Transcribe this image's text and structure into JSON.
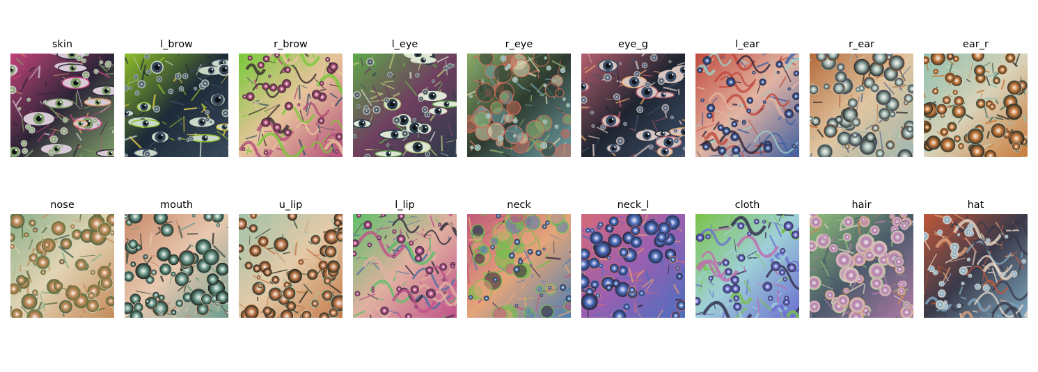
{
  "panels": [
    {
      "label": "skin",
      "palette": [
        "#c2457a",
        "#7fa06a",
        "#e39a6b",
        "#2b2436",
        "#d8c9d6"
      ],
      "motif": "eye"
    },
    {
      "label": "l_brow",
      "palette": [
        "#8fbf2a",
        "#3a4a5c",
        "#e8d24a",
        "#1d2a38",
        "#c9d7c8"
      ],
      "motif": "eye"
    },
    {
      "label": "r_brow",
      "palette": [
        "#78c93a",
        "#b34d7a",
        "#2e4b6a",
        "#e7c39c",
        "#352a2f"
      ],
      "motif": "swirl"
    },
    {
      "label": "l_eye",
      "palette": [
        "#5fa84a",
        "#2a3b4a",
        "#b8c47a",
        "#6f3f5f",
        "#dfe7d4"
      ],
      "motif": "eye"
    },
    {
      "label": "r_eye",
      "palette": [
        "#8cae6a",
        "#6ea0a8",
        "#c96a5a",
        "#2d3a2f",
        "#e2d9b6"
      ],
      "motif": "cell"
    },
    {
      "label": "eye_g",
      "palette": [
        "#b65f6e",
        "#3c4f6a",
        "#e5a56a",
        "#1f2530",
        "#d9c6c0"
      ],
      "motif": "eye"
    },
    {
      "label": "l_ear",
      "palette": [
        "#c04a3e",
        "#3e5fa1",
        "#9bd0c6",
        "#e2b4a2",
        "#2a2234"
      ],
      "motif": "swirl"
    },
    {
      "label": "r_ear",
      "palette": [
        "#b46a3a",
        "#9fb7b0",
        "#5a6c8c",
        "#e0c5a0",
        "#2b2b2b"
      ],
      "motif": "bubble"
    },
    {
      "label": "ear_r",
      "palette": [
        "#8ec1b1",
        "#c97a3a",
        "#4a6a5a",
        "#d9d2b8",
        "#2a2f2a"
      ],
      "motif": "bubble"
    },
    {
      "label": "nose",
      "palette": [
        "#8bb08a",
        "#c48a5a",
        "#3f5a4a",
        "#e2d4b4",
        "#5a6d3c"
      ],
      "motif": "bubble"
    },
    {
      "label": "mouth",
      "palette": [
        "#c88a6a",
        "#6f9e8f",
        "#3a4a3f",
        "#e8c8b0",
        "#1e2620"
      ],
      "motif": "bubble"
    },
    {
      "label": "u_lip",
      "palette": [
        "#9fc2a8",
        "#c47a4a",
        "#3b4a3a",
        "#e4caa8",
        "#252820"
      ],
      "motif": "bubble"
    },
    {
      "label": "l_lip",
      "palette": [
        "#5fbf6a",
        "#c0528a",
        "#4a6fa0",
        "#e0b0a0",
        "#2b2a3a"
      ],
      "motif": "swirl"
    },
    {
      "label": "neck",
      "palette": [
        "#c05a7a",
        "#4f7fb0",
        "#6fc24a",
        "#e4a57a",
        "#2a2438"
      ],
      "motif": "cell"
    },
    {
      "label": "neck_l",
      "palette": [
        "#d46a7a",
        "#4a6fc0",
        "#e8a070",
        "#9b5fb0",
        "#2a2436"
      ],
      "motif": "bubble"
    },
    {
      "label": "cloth",
      "palette": [
        "#7ac24a",
        "#6a6fd0",
        "#c06ab0",
        "#9fd0d8",
        "#2f2a48"
      ],
      "motif": "swirl"
    },
    {
      "label": "hair",
      "palette": [
        "#8fbf7a",
        "#b07aa8",
        "#c88a5a",
        "#4a5a6a",
        "#e0d0c0"
      ],
      "motif": "bubble"
    },
    {
      "label": "hat",
      "palette": [
        "#c0583a",
        "#7fa8c0",
        "#e0a07a",
        "#3a3a4a",
        "#e8d8c8"
      ],
      "motif": "swirl"
    }
  ]
}
